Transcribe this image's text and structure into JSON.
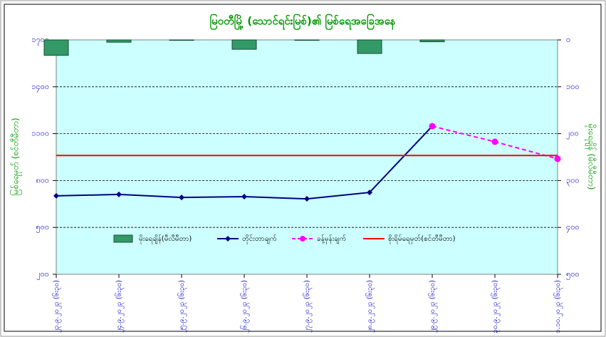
{
  "chart_data": {
    "type": "combo",
    "title": "မြဝတီမြို့ (သောင်ရင်းမြစ်)၏ မြစ်ရေအခြေအနေ",
    "ylabel": "မြစ်ရေမှတ် (စင်တီမီတာ)",
    "y2label": "မိုးရေချိန် (မီလီမီတာ)",
    "categories": [
      "၂၃.၉.၂၀၂၃ (၆း၃၀)",
      "၂၄.၉.၂၀၂၃ (၆း၃၀)",
      "၂၅.၉.၂၀၂၃ (၆း၃၀)",
      "၂၆.၉.၂၀၂၃ (၆း၃၀)",
      "၂၇.၉.၂၀၂၃ (၆း၃၀)",
      "၂၈.၉.၂၀၂၃ (၆း၃၀)",
      "၂၉.၉.၂၀၂၃ (၆း၃၀)",
      "၃၀.၉.၂၀၂၃ (၆း၃၀)",
      "၁.၁၀.၂၀၂၃ (၆း၃၀)"
    ],
    "ylim": [
      200,
      1700
    ],
    "yticks": [
      {
        "value": 200,
        "label": "၂၀၀"
      },
      {
        "value": 500,
        "label": "၅၀၀"
      },
      {
        "value": 800,
        "label": "၈၀၀"
      },
      {
        "value": 1100,
        "label": "၁၁၀၀"
      },
      {
        "value": 1400,
        "label": "၁၄၀၀"
      },
      {
        "value": 1700,
        "label": "၁၇၀၀"
      }
    ],
    "y2lim": [
      500,
      0
    ],
    "y2ticks": [
      {
        "value": 0,
        "label": "၀"
      },
      {
        "value": 100,
        "label": "၁၀၀"
      },
      {
        "value": 200,
        "label": "၂၀၀"
      },
      {
        "value": 300,
        "label": "၃၀၀"
      },
      {
        "value": 400,
        "label": "၄၀၀"
      },
      {
        "value": 500,
        "label": "၅၀၀"
      }
    ],
    "grid": true,
    "series": [
      {
        "name": "မိုးရေချိန်(မီလီမီတာ)",
        "kind": "bar",
        "axis": "y2",
        "color": "#339966",
        "values": [
          33,
          5,
          1,
          20,
          1,
          29,
          4,
          null,
          null
        ]
      },
      {
        "name": "တိုင်းတာချက်",
        "kind": "line",
        "color": "#000080",
        "values": [
          702,
          711,
          692,
          697,
          683,
          724,
          1148,
          null,
          null
        ]
      },
      {
        "name": "ခန့်မှန်းချက်",
        "kind": "dashed",
        "color": "#ff00ff",
        "values": [
          null,
          null,
          null,
          null,
          null,
          null,
          1148,
          1048,
          939
        ]
      },
      {
        "name": "စိုးရိမ်ရေမှတ်(စင်တီမီတာ)",
        "kind": "level",
        "color": "#ff0000",
        "level": 960
      }
    ]
  }
}
